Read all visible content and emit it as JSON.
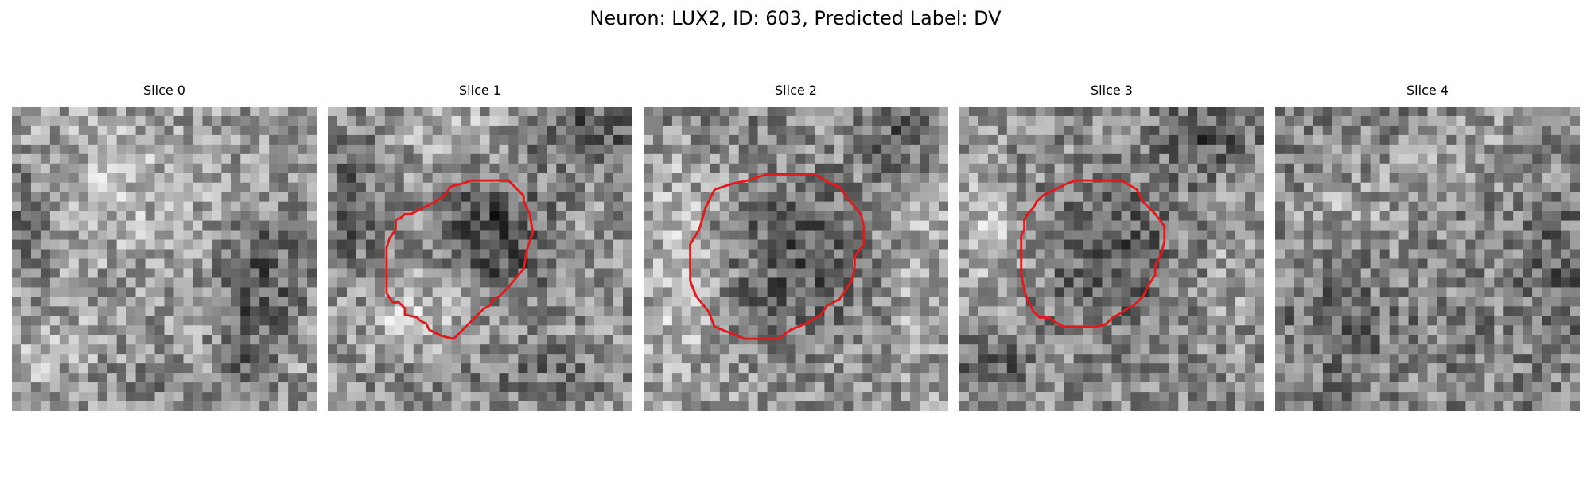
{
  "figure": {
    "title": "Neuron: LUX2, ID: 603, Predicted Label: DV",
    "outline_color": "#e31a1c"
  },
  "panels": [
    {
      "label": "Slice 0",
      "has_outline": false
    },
    {
      "label": "Slice 1",
      "has_outline": true
    },
    {
      "label": "Slice 2",
      "has_outline": true
    },
    {
      "label": "Slice 3",
      "has_outline": true
    },
    {
      "label": "Slice 4",
      "has_outline": false
    }
  ]
}
